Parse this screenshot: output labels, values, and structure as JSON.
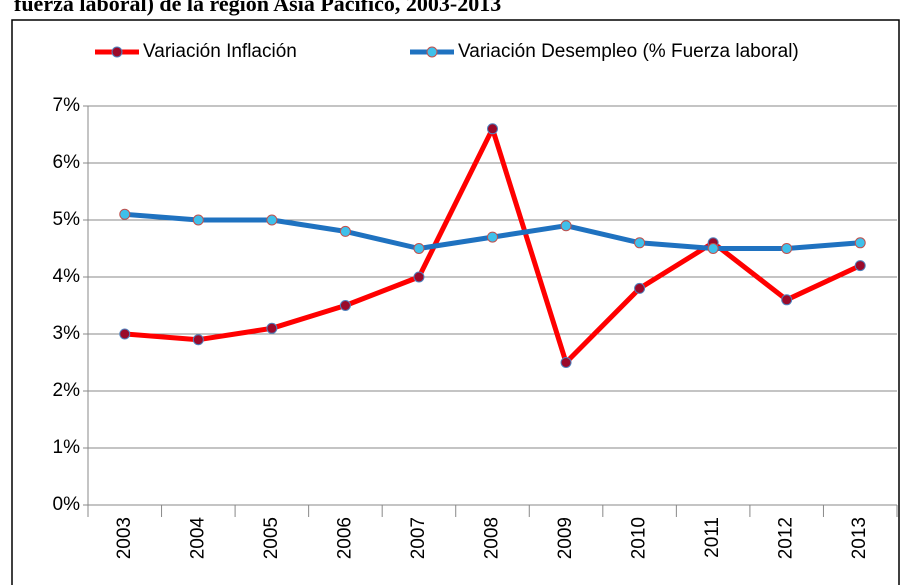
{
  "chart_data": {
    "type": "line",
    "title": "fuerza laboral) de la región Asia Pacífico, 2003-2013",
    "categories": [
      "2003",
      "2004",
      "2005",
      "2006",
      "2007",
      "2008",
      "2009",
      "2010",
      "2011",
      "2012",
      "2013"
    ],
    "series": [
      {
        "name": "Variación Inflación",
        "color": "#ff0000",
        "marker_color": "#9b0a2a",
        "values": [
          3.0,
          2.9,
          3.1,
          3.5,
          4.0,
          6.6,
          2.5,
          3.8,
          4.6,
          3.6,
          4.2
        ]
      },
      {
        "name": "Variación Desempleo (% Fuerza laboral)",
        "color": "#1f72c0",
        "marker_color": "#3fc0ea",
        "values": [
          5.1,
          5.0,
          5.0,
          4.8,
          4.5,
          4.7,
          4.9,
          4.6,
          4.5,
          4.5,
          4.6
        ]
      }
    ],
    "ylim": [
      0,
      7
    ],
    "yticks": [
      {
        "value": 0,
        "label": "0%"
      },
      {
        "value": 1,
        "label": "1%"
      },
      {
        "value": 2,
        "label": "2%"
      },
      {
        "value": 3,
        "label": "3%"
      },
      {
        "value": 4,
        "label": "4%"
      },
      {
        "value": 5,
        "label": "5%"
      },
      {
        "value": 6,
        "label": "6%"
      },
      {
        "value": 7,
        "label": "7%"
      }
    ],
    "grid": true,
    "legend": "top"
  }
}
